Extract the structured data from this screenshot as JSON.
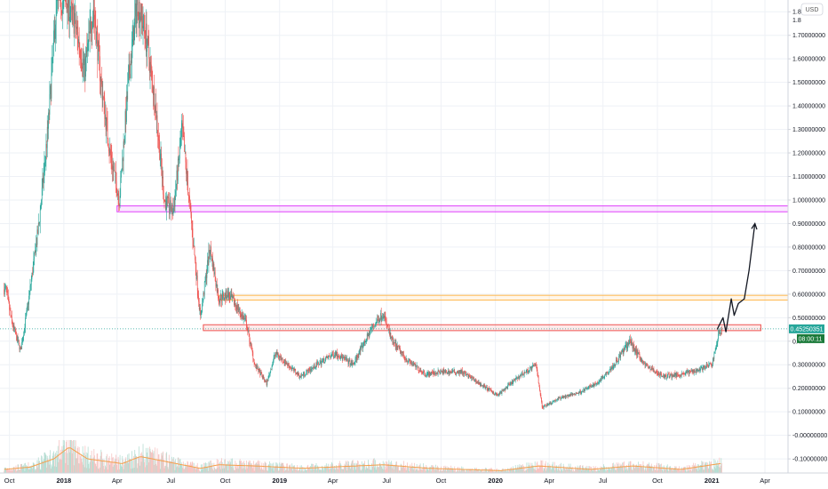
{
  "currency": "USD",
  "price_badge": "0.45250351",
  "countdown_badge": "08:00:11",
  "colors": {
    "up": "#26a69a",
    "down": "#ef5350",
    "grid": "#eef1f6",
    "magenta_zone": "#e040fb",
    "orange_zone": "#ffb74d",
    "red_zone": "#ef5350",
    "volume_ma": "#f5a04b",
    "badge_green": "#26a69a",
    "badge_dark": "#1b7a3a"
  },
  "chart_data": {
    "type": "candlestick",
    "y_tick_labels": [
      "1.8",
      "1.70000000",
      "1.60000000",
      "1.50000000",
      "1.40000000",
      "1.30000000",
      "1.20000000",
      "1.10000000",
      "1.00000000",
      "0.90000000",
      "0.80000000",
      "0.70000000",
      "0.60000000",
      "0.50000000",
      "0.4",
      "0.30000000",
      "0.20000000",
      "0.10000000",
      "-0.00000000",
      "-0.10000000"
    ],
    "y_tick_values": [
      1.8,
      1.7,
      1.6,
      1.5,
      1.4,
      1.3,
      1.2,
      1.1,
      1.0,
      0.9,
      0.8,
      0.7,
      0.6,
      0.5,
      0.4,
      0.3,
      0.2,
      0.1,
      0.0,
      -0.1
    ],
    "ylim": [
      -0.16,
      1.85
    ],
    "x_tick_labels": [
      "Oct",
      "2018",
      "Apr",
      "Jul",
      "Oct",
      "2019",
      "Apr",
      "Jul",
      "Oct",
      "2020",
      "Apr",
      "Jul",
      "Oct",
      "2021",
      "Apr"
    ],
    "x_tick_bold": [
      false,
      true,
      false,
      false,
      false,
      true,
      false,
      false,
      false,
      true,
      false,
      false,
      false,
      true,
      false
    ],
    "x_range": [
      "2017-09-15",
      "2021-05-10"
    ],
    "price_path": [
      [
        "2017-09-25",
        0.62
      ],
      [
        "2017-10-05",
        0.48
      ],
      [
        "2017-10-20",
        0.36
      ],
      [
        "2017-11-01",
        0.55
      ],
      [
        "2017-11-20",
        0.9
      ],
      [
        "2017-12-05",
        1.3
      ],
      [
        "2017-12-20",
        1.85
      ],
      [
        "2018-01-05",
        1.85
      ],
      [
        "2018-01-20",
        1.75
      ],
      [
        "2018-02-05",
        1.55
      ],
      [
        "2018-02-20",
        1.82
      ],
      [
        "2018-03-05",
        1.5
      ],
      [
        "2018-03-20",
        1.2
      ],
      [
        "2018-04-05",
        1.0
      ],
      [
        "2018-04-20",
        1.5
      ],
      [
        "2018-05-05",
        1.85
      ],
      [
        "2018-05-20",
        1.7
      ],
      [
        "2018-06-05",
        1.4
      ],
      [
        "2018-06-20",
        1.0
      ],
      [
        "2018-07-05",
        0.95
      ],
      [
        "2018-07-20",
        1.3
      ],
      [
        "2018-08-05",
        0.9
      ],
      [
        "2018-08-20",
        0.5
      ],
      [
        "2018-09-05",
        0.8
      ],
      [
        "2018-09-20",
        0.58
      ],
      [
        "2018-10-05",
        0.6
      ],
      [
        "2018-10-20",
        0.55
      ],
      [
        "2018-11-05",
        0.48
      ],
      [
        "2018-11-20",
        0.3
      ],
      [
        "2018-12-10",
        0.22
      ],
      [
        "2018-12-25",
        0.35
      ],
      [
        "2019-01-15",
        0.3
      ],
      [
        "2019-02-05",
        0.25
      ],
      [
        "2019-03-05",
        0.3
      ],
      [
        "2019-04-05",
        0.35
      ],
      [
        "2019-05-05",
        0.3
      ],
      [
        "2019-06-05",
        0.45
      ],
      [
        "2019-06-25",
        0.52
      ],
      [
        "2019-07-10",
        0.4
      ],
      [
        "2019-08-05",
        0.32
      ],
      [
        "2019-09-05",
        0.26
      ],
      [
        "2019-10-05",
        0.27
      ],
      [
        "2019-11-05",
        0.27
      ],
      [
        "2019-12-05",
        0.22
      ],
      [
        "2020-01-05",
        0.17
      ],
      [
        "2020-02-10",
        0.25
      ],
      [
        "2020-03-10",
        0.3
      ],
      [
        "2020-03-20",
        0.12
      ],
      [
        "2020-04-20",
        0.16
      ],
      [
        "2020-05-20",
        0.18
      ],
      [
        "2020-06-20",
        0.22
      ],
      [
        "2020-07-20",
        0.3
      ],
      [
        "2020-08-15",
        0.4
      ],
      [
        "2020-09-10",
        0.3
      ],
      [
        "2020-10-10",
        0.25
      ],
      [
        "2020-11-10",
        0.26
      ],
      [
        "2020-12-10",
        0.28
      ],
      [
        "2021-01-01",
        0.3
      ],
      [
        "2021-01-15",
        0.45
      ]
    ],
    "volume_path": [
      [
        "2017-09-20",
        0.015
      ],
      [
        "2017-11-05",
        0.025
      ],
      [
        "2017-12-15",
        0.06
      ],
      [
        "2018-01-10",
        0.11
      ],
      [
        "2018-02-10",
        0.06
      ],
      [
        "2018-04-10",
        0.04
      ],
      [
        "2018-05-10",
        0.07
      ],
      [
        "2018-07-10",
        0.04
      ],
      [
        "2018-08-20",
        0.02
      ],
      [
        "2018-09-20",
        0.035
      ],
      [
        "2018-11-20",
        0.03
      ],
      [
        "2019-02-10",
        0.02
      ],
      [
        "2019-06-25",
        0.035
      ],
      [
        "2019-09-10",
        0.02
      ],
      [
        "2020-01-10",
        0.01
      ],
      [
        "2020-03-15",
        0.03
      ],
      [
        "2020-06-10",
        0.015
      ],
      [
        "2020-08-20",
        0.03
      ],
      [
        "2020-11-10",
        0.015
      ],
      [
        "2021-01-15",
        0.04
      ]
    ],
    "zones": [
      {
        "name": "resistance-high",
        "from": 0.95,
        "to": 0.975,
        "color": "magenta"
      },
      {
        "name": "resistance-mid",
        "from": 0.575,
        "to": 0.595,
        "color": "orange"
      },
      {
        "name": "support-broken",
        "from": 0.445,
        "to": 0.47,
        "color": "red"
      }
    ],
    "projection": [
      [
        "2021-01-10",
        0.45
      ],
      [
        "2021-01-20",
        0.5
      ],
      [
        "2021-01-25",
        0.44
      ],
      [
        "2021-02-03",
        0.58
      ],
      [
        "2021-02-08",
        0.51
      ],
      [
        "2021-02-15",
        0.56
      ],
      [
        "2021-02-25",
        0.58
      ],
      [
        "2021-03-05",
        0.7
      ],
      [
        "2021-03-15",
        0.9
      ]
    ],
    "current_price": 0.4525
  }
}
